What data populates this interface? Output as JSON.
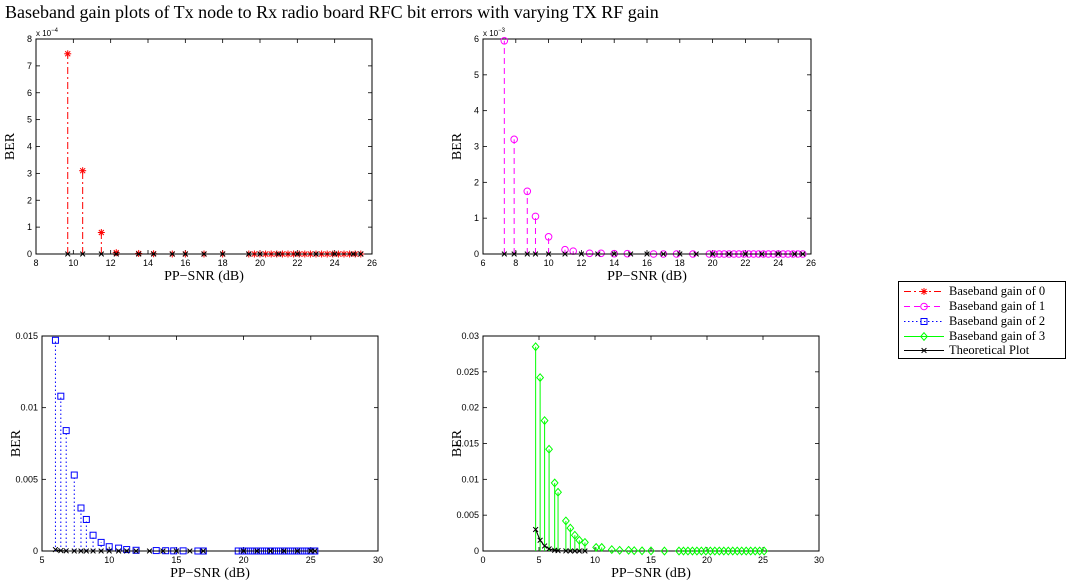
{
  "title": "Baseband gain plots of Tx node to Rx radio board RFC bit errors with varying TX RF gain",
  "legend": {
    "entries": [
      {
        "label": "Baseband gain of 0",
        "color": "#ff0000",
        "marker": "star",
        "dash": "dashdot"
      },
      {
        "label": "Baseband gain of 1",
        "color": "#ff00ff",
        "marker": "circle",
        "dash": "dashed"
      },
      {
        "label": "Baseband gain of 2",
        "color": "#0000ff",
        "marker": "square",
        "dash": "dotted"
      },
      {
        "label": "Baseband gain of 3",
        "color": "#00ff00",
        "marker": "diamond",
        "dash": "solid"
      },
      {
        "label": "Theoretical Plot",
        "color": "#000000",
        "marker": "x",
        "dash": "solid"
      }
    ]
  },
  "chart_data": [
    {
      "type": "scatter",
      "xlabel": "PP−SNR (dB)",
      "ylabel": "BER",
      "xlim": [
        8,
        26
      ],
      "ylim": [
        0,
        8
      ],
      "xticks": [
        8,
        10,
        12,
        14,
        16,
        18,
        20,
        22,
        24,
        26
      ],
      "yticks": [
        0,
        1,
        2,
        3,
        4,
        5,
        6,
        7,
        8
      ],
      "exponent_label": "x 10",
      "exponent": "−4",
      "series": [
        {
          "name": "Baseband gain of 0",
          "x": [
            9.7,
            10.5,
            11.5,
            12.3,
            13.5,
            14.3,
            15.3,
            16.0,
            17.0,
            18.0,
            19.4,
            19.7,
            20.0,
            20.3,
            20.6,
            20.9,
            21.2,
            21.5,
            21.8,
            22.1,
            22.4,
            22.7,
            23.0,
            23.3,
            23.6,
            23.9,
            24.2,
            24.5,
            24.8,
            25.1,
            25.4
          ],
          "y": [
            7.45,
            3.1,
            0.8,
            0.05,
            0.02,
            0.01,
            0,
            0,
            0,
            0,
            0,
            0,
            0,
            0,
            0,
            0,
            0,
            0,
            0,
            0,
            0,
            0,
            0,
            0,
            0,
            0,
            0,
            0,
            0,
            0,
            0
          ]
        },
        {
          "name": "Theoretical Plot",
          "x": [
            9.7,
            10.5,
            11.5,
            12.3,
            13.5,
            14.3,
            15.3,
            16.0,
            17.0,
            18.0,
            19.4,
            20.0,
            21.0,
            22.0,
            23.0,
            24.0,
            25.0,
            25.4
          ],
          "y": [
            0,
            0,
            0,
            0,
            0,
            0,
            0,
            0,
            0,
            0,
            0,
            0,
            0,
            0,
            0,
            0,
            0,
            0
          ]
        }
      ]
    },
    {
      "type": "scatter",
      "xlabel": "PP−SNR (dB)",
      "ylabel": "BER",
      "xlim": [
        6,
        26
      ],
      "ylim": [
        0,
        6
      ],
      "xticks": [
        6,
        8,
        10,
        12,
        14,
        16,
        18,
        20,
        22,
        24,
        26
      ],
      "yticks": [
        0,
        1,
        2,
        3,
        4,
        5,
        6
      ],
      "exponent_label": "x 10",
      "exponent": "−3",
      "series": [
        {
          "name": "Baseband gain of 1",
          "x": [
            7.3,
            7.9,
            8.7,
            9.2,
            10.0,
            11.0,
            11.5,
            12.5,
            13.2,
            14.0,
            14.8,
            16.4,
            17.0,
            17.8,
            18.8,
            19.8,
            20.1,
            20.4,
            20.7,
            21.0,
            21.3,
            21.6,
            21.9,
            22.2,
            22.5,
            22.8,
            23.1,
            23.4,
            23.7,
            24.0,
            24.3,
            24.6,
            24.9,
            25.2,
            25.5
          ],
          "y": [
            5.95,
            3.2,
            1.75,
            1.05,
            0.48,
            0.12,
            0.08,
            0.02,
            0.02,
            0.01,
            0.01,
            0,
            0,
            0,
            0,
            0,
            0,
            0,
            0,
            0,
            0,
            0,
            0,
            0,
            0,
            0,
            0,
            0,
            0,
            0,
            0,
            0,
            0,
            0,
            0
          ]
        },
        {
          "name": "Theoretical Plot",
          "x": [
            7.3,
            7.9,
            8.7,
            9.2,
            10.0,
            11.0,
            12.0,
            13.0,
            14.0,
            15.0,
            16.0,
            17.0,
            18.0,
            19.0,
            20.0,
            21.0,
            22.0,
            23.0,
            24.0,
            25.0,
            25.5
          ],
          "y": [
            0,
            0,
            0,
            0,
            0,
            0,
            0,
            0,
            0,
            0,
            0,
            0,
            0,
            0,
            0,
            0,
            0,
            0,
            0,
            0,
            0
          ]
        }
      ]
    },
    {
      "type": "scatter",
      "xlabel": "PP−SNR (dB)",
      "ylabel": "BER",
      "xlim": [
        5,
        30
      ],
      "ylim": [
        0,
        0.015
      ],
      "xticks": [
        5,
        10,
        15,
        20,
        25,
        30
      ],
      "yticks": [
        0,
        0.005,
        0.01,
        0.015
      ],
      "series": [
        {
          "name": "Baseband gain of 2",
          "x": [
            6.0,
            6.4,
            6.8,
            7.4,
            7.9,
            8.3,
            8.8,
            9.4,
            10.0,
            10.7,
            11.3,
            12.0,
            13.5,
            14.2,
            14.8,
            15.5,
            16.6,
            17.0,
            19.6,
            19.9,
            20.2,
            20.5,
            20.8,
            21.1,
            21.4,
            21.7,
            22.0,
            22.3,
            22.6,
            22.9,
            23.2,
            23.5,
            23.8,
            24.1,
            24.4,
            24.7,
            25.0,
            25.3
          ],
          "y": [
            0.0147,
            0.0108,
            0.0084,
            0.0053,
            0.003,
            0.0022,
            0.0011,
            0.0006,
            0.0003,
            0.0002,
            0.0001,
            5e-05,
            3e-05,
            2e-05,
            1e-05,
            1e-05,
            0,
            0,
            0,
            0,
            0,
            0,
            0,
            0,
            0,
            0,
            0,
            0,
            0,
            0,
            0,
            0,
            0,
            0,
            0,
            0,
            0,
            0
          ]
        },
        {
          "name": "Theoretical Plot",
          "x": [
            6.0,
            6.4,
            6.8,
            7.4,
            7.9,
            8.3,
            8.8,
            9.4,
            10.0,
            10.7,
            11.3,
            12.0,
            13.0,
            14.0,
            15.0,
            16.0,
            17.0,
            20.0,
            21.0,
            22.0,
            23.0,
            24.0,
            25.0,
            25.3
          ],
          "y": [
            0.0001,
            3e-05,
            1e-05,
            0,
            0,
            0,
            0,
            0,
            0,
            0,
            0,
            0,
            0,
            0,
            0,
            0,
            0,
            0,
            0,
            0,
            0,
            0,
            0,
            0
          ]
        }
      ]
    },
    {
      "type": "scatter",
      "xlabel": "PP−SNR (dB)",
      "ylabel": "BER",
      "xlim": [
        0,
        30
      ],
      "ylim": [
        0,
        0.03
      ],
      "xticks": [
        0,
        5,
        10,
        15,
        20,
        25,
        30
      ],
      "yticks": [
        0,
        0.005,
        0.01,
        0.015,
        0.02,
        0.025,
        0.03
      ],
      "series": [
        {
          "name": "Baseband gain of 3",
          "x": [
            4.7,
            5.1,
            5.5,
            5.9,
            6.4,
            6.7,
            7.4,
            7.8,
            8.2,
            8.6,
            9.1,
            10.1,
            10.6,
            11.5,
            12.2,
            13.0,
            13.5,
            14.2,
            15.0,
            16.2,
            17.5,
            17.9,
            18.3,
            18.7,
            19.1,
            19.5,
            19.9,
            20.3,
            20.7,
            21.1,
            21.5,
            21.9,
            22.3,
            22.7,
            23.1,
            23.5,
            23.9,
            24.3,
            24.7,
            25.1
          ],
          "y": [
            0.0285,
            0.0242,
            0.0182,
            0.0142,
            0.0095,
            0.0082,
            0.0042,
            0.0032,
            0.0022,
            0.0015,
            0.0012,
            0.0005,
            0.0005,
            0.0002,
            0.0001,
            0.0001,
            5e-05,
            3e-05,
            2e-05,
            0,
            0,
            0,
            0,
            0,
            0,
            0,
            0,
            0,
            0,
            0,
            0,
            0,
            0,
            0,
            0,
            0,
            0,
            0,
            0,
            0
          ]
        },
        {
          "name": "Theoretical Plot",
          "x": [
            4.7,
            5.1,
            5.5,
            5.9,
            6.4,
            6.7,
            7.4,
            7.8,
            8.2,
            8.6,
            9.1
          ],
          "y": [
            0.003,
            0.0015,
            0.0007,
            0.0003,
            0.0001,
            5e-05,
            1e-05,
            0,
            0,
            0,
            0
          ]
        }
      ]
    }
  ]
}
